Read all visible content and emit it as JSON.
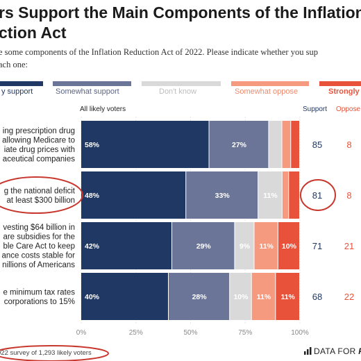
{
  "title": "rs Support the Main Components of the Inflation\nction Act",
  "subtitle": "e some components of the Inflation Reduction Act of 2022. Please indicate whether you sup\nach one:",
  "legend": [
    {
      "label": "y support",
      "color": "#1f3864"
    },
    {
      "label": "Somewhat support",
      "color": "#6b7597"
    },
    {
      "label": "Don't know",
      "color": "#d9d9d9"
    },
    {
      "label": "Somewhat oppose",
      "color": "#f59a7e"
    },
    {
      "label": "Strongly",
      "color": "#e8523a"
    }
  ],
  "column_headers": {
    "group": "All likely voters",
    "support": "Support",
    "oppose": "Oppose"
  },
  "chart_data": {
    "type": "bar",
    "orientation": "horizontal",
    "stacked": true,
    "group_label": "All likely voters",
    "categories": [
      "ing prescription drug\nallowing Medicare to\niate drug prices with\naceutical companies",
      "g the national deficit\nat least $300 billion",
      "vesting $64 billion in\nare subsidies for the\nble Care Act to keep\nance costs stable for\nnillions of Americans",
      "e minimum tax rates\ncorporations to 15%"
    ],
    "series": [
      {
        "name": "y support",
        "color": "#1f3864",
        "values": [
          58,
          48,
          42,
          40
        ]
      },
      {
        "name": "Somewhat support",
        "color": "#6b7597",
        "values": [
          27,
          33,
          29,
          28
        ]
      },
      {
        "name": "Don't know",
        "color": "#d9d9d9",
        "values": [
          6,
          11,
          9,
          10
        ]
      },
      {
        "name": "Somewhat oppose",
        "color": "#f59a7e",
        "values": [
          4,
          3,
          11,
          11
        ]
      },
      {
        "name": "Strongly",
        "color": "#e8523a",
        "values": [
          4,
          5,
          10,
          11
        ]
      }
    ],
    "data_labels": [
      [
        "58%",
        "27%",
        "",
        "",
        ""
      ],
      [
        "48%",
        "33%",
        "11%",
        "",
        ""
      ],
      [
        "42%",
        "29%",
        "9%",
        "11%",
        "10%"
      ],
      [
        "40%",
        "28%",
        "10%",
        "11%",
        "11%"
      ]
    ],
    "support_totals": [
      85,
      81,
      71,
      68
    ],
    "oppose_totals": [
      8,
      8,
      21,
      22
    ],
    "x_ticks": [
      "0%",
      "25%",
      "50%",
      "75%",
      "100%"
    ],
    "xlim": [
      0,
      100
    ],
    "highlighted_row": 1,
    "grid": true
  },
  "footer": {
    "note": "022 survey of 1,293 likely voters",
    "brand_prefix": "DATA FOR ",
    "brand_suffix": "P"
  },
  "colors": {
    "support_text": "#1f3864",
    "oppose_text": "#e8523a",
    "annotation": "#c8372d"
  }
}
